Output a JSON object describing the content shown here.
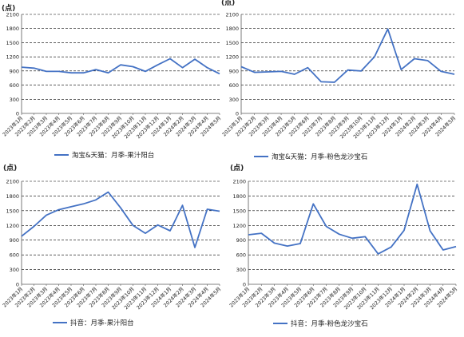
{
  "colors": {
    "line": "#4472C4",
    "axis": "#595959",
    "grid": "#000000",
    "text": "#222222"
  },
  "chart_data": [
    {
      "type": "line",
      "unit_label": "(点)",
      "ylim": [
        0,
        2100
      ],
      "yticks": [
        0,
        300,
        600,
        900,
        1200,
        1500,
        1800,
        2100
      ],
      "grid": "dashed horizontal",
      "legend_position": "bottom",
      "categories": [
        "2023年1月",
        "2023年2月",
        "2023年3月",
        "2023年4月",
        "2023年5月",
        "2023年6月",
        "2023年7月",
        "2023年8月",
        "2023年9月",
        "2023年10月",
        "2023年11月",
        "2023年12月",
        "2024年1月",
        "2024年2月",
        "2024年3月",
        "2024年4月",
        "2024年5月"
      ],
      "series": [
        {
          "name": "淘宝&天猫：月季-果汁阳台",
          "values": [
            980,
            960,
            890,
            890,
            860,
            860,
            930,
            860,
            1030,
            990,
            890,
            1030,
            1160,
            970,
            1150,
            970,
            840
          ]
        }
      ]
    },
    {
      "type": "line",
      "unit_label": "(点)",
      "ylim": [
        0,
        2100
      ],
      "yticks": [
        0,
        300,
        600,
        900,
        1200,
        1500,
        1800,
        2100
      ],
      "grid": "dashed horizontal",
      "legend_position": "bottom",
      "categories": [
        "2023年1月",
        "2023年2月",
        "2023年3月",
        "2023年4月",
        "2023年5月",
        "2023年6月",
        "2023年7月",
        "2023年8月",
        "2023年9月",
        "2023年10月",
        "2023年11月",
        "2023年12月",
        "2024年1月",
        "2024年2月",
        "2024年3月",
        "2024年4月",
        "2024年5月"
      ],
      "series": [
        {
          "name": "淘宝&天猫：月季-粉色龙沙宝石",
          "values": [
            990,
            870,
            880,
            890,
            830,
            970,
            670,
            660,
            920,
            900,
            1200,
            1790,
            930,
            1160,
            1120,
            890,
            830
          ]
        }
      ]
    },
    {
      "type": "line",
      "unit_label": "(点)",
      "ylim": [
        0,
        2100
      ],
      "yticks": [
        0,
        300,
        600,
        900,
        1200,
        1500,
        1800,
        2100
      ],
      "grid": "dashed horizontal",
      "legend_position": "bottom",
      "categories": [
        "2023年1月",
        "2023年2月",
        "2023年3月",
        "2023年4月",
        "2023年5月",
        "2023年6月",
        "2023年7月",
        "2023年8月",
        "2023年9月",
        "2023年10月",
        "2023年11月",
        "2023年12月",
        "2024年1月",
        "2024年2月",
        "2024年3月",
        "2024年4月",
        "2024年5月"
      ],
      "series": [
        {
          "name": "抖音：月季-果汁阳台",
          "values": [
            980,
            1180,
            1410,
            1520,
            1580,
            1640,
            1720,
            1880,
            1560,
            1200,
            1040,
            1210,
            1090,
            1610,
            750,
            1530,
            1490
          ]
        }
      ]
    },
    {
      "type": "line",
      "unit_label": "(点)",
      "ylim": [
        0,
        2100
      ],
      "yticks": [
        0,
        300,
        600,
        900,
        1200,
        1500,
        1800,
        2100
      ],
      "grid": "dashed horizontal",
      "legend_position": "bottom",
      "categories": [
        "2023年1月",
        "2023年2月",
        "2023年3月",
        "2023年4月",
        "2023年5月",
        "2023年6月",
        "2023年7月",
        "2023年8月",
        "2023年9月",
        "2023年10月",
        "2023年11月",
        "2023年12月",
        "2024年1月",
        "2024年2月",
        "2024年3月",
        "2024年4月",
        "2024年5月"
      ],
      "series": [
        {
          "name": "抖音：月季-粉色龙沙宝石",
          "values": [
            1010,
            1040,
            840,
            780,
            830,
            1640,
            1180,
            1020,
            940,
            970,
            620,
            760,
            1100,
            2040,
            1090,
            700,
            770
          ]
        }
      ]
    }
  ]
}
